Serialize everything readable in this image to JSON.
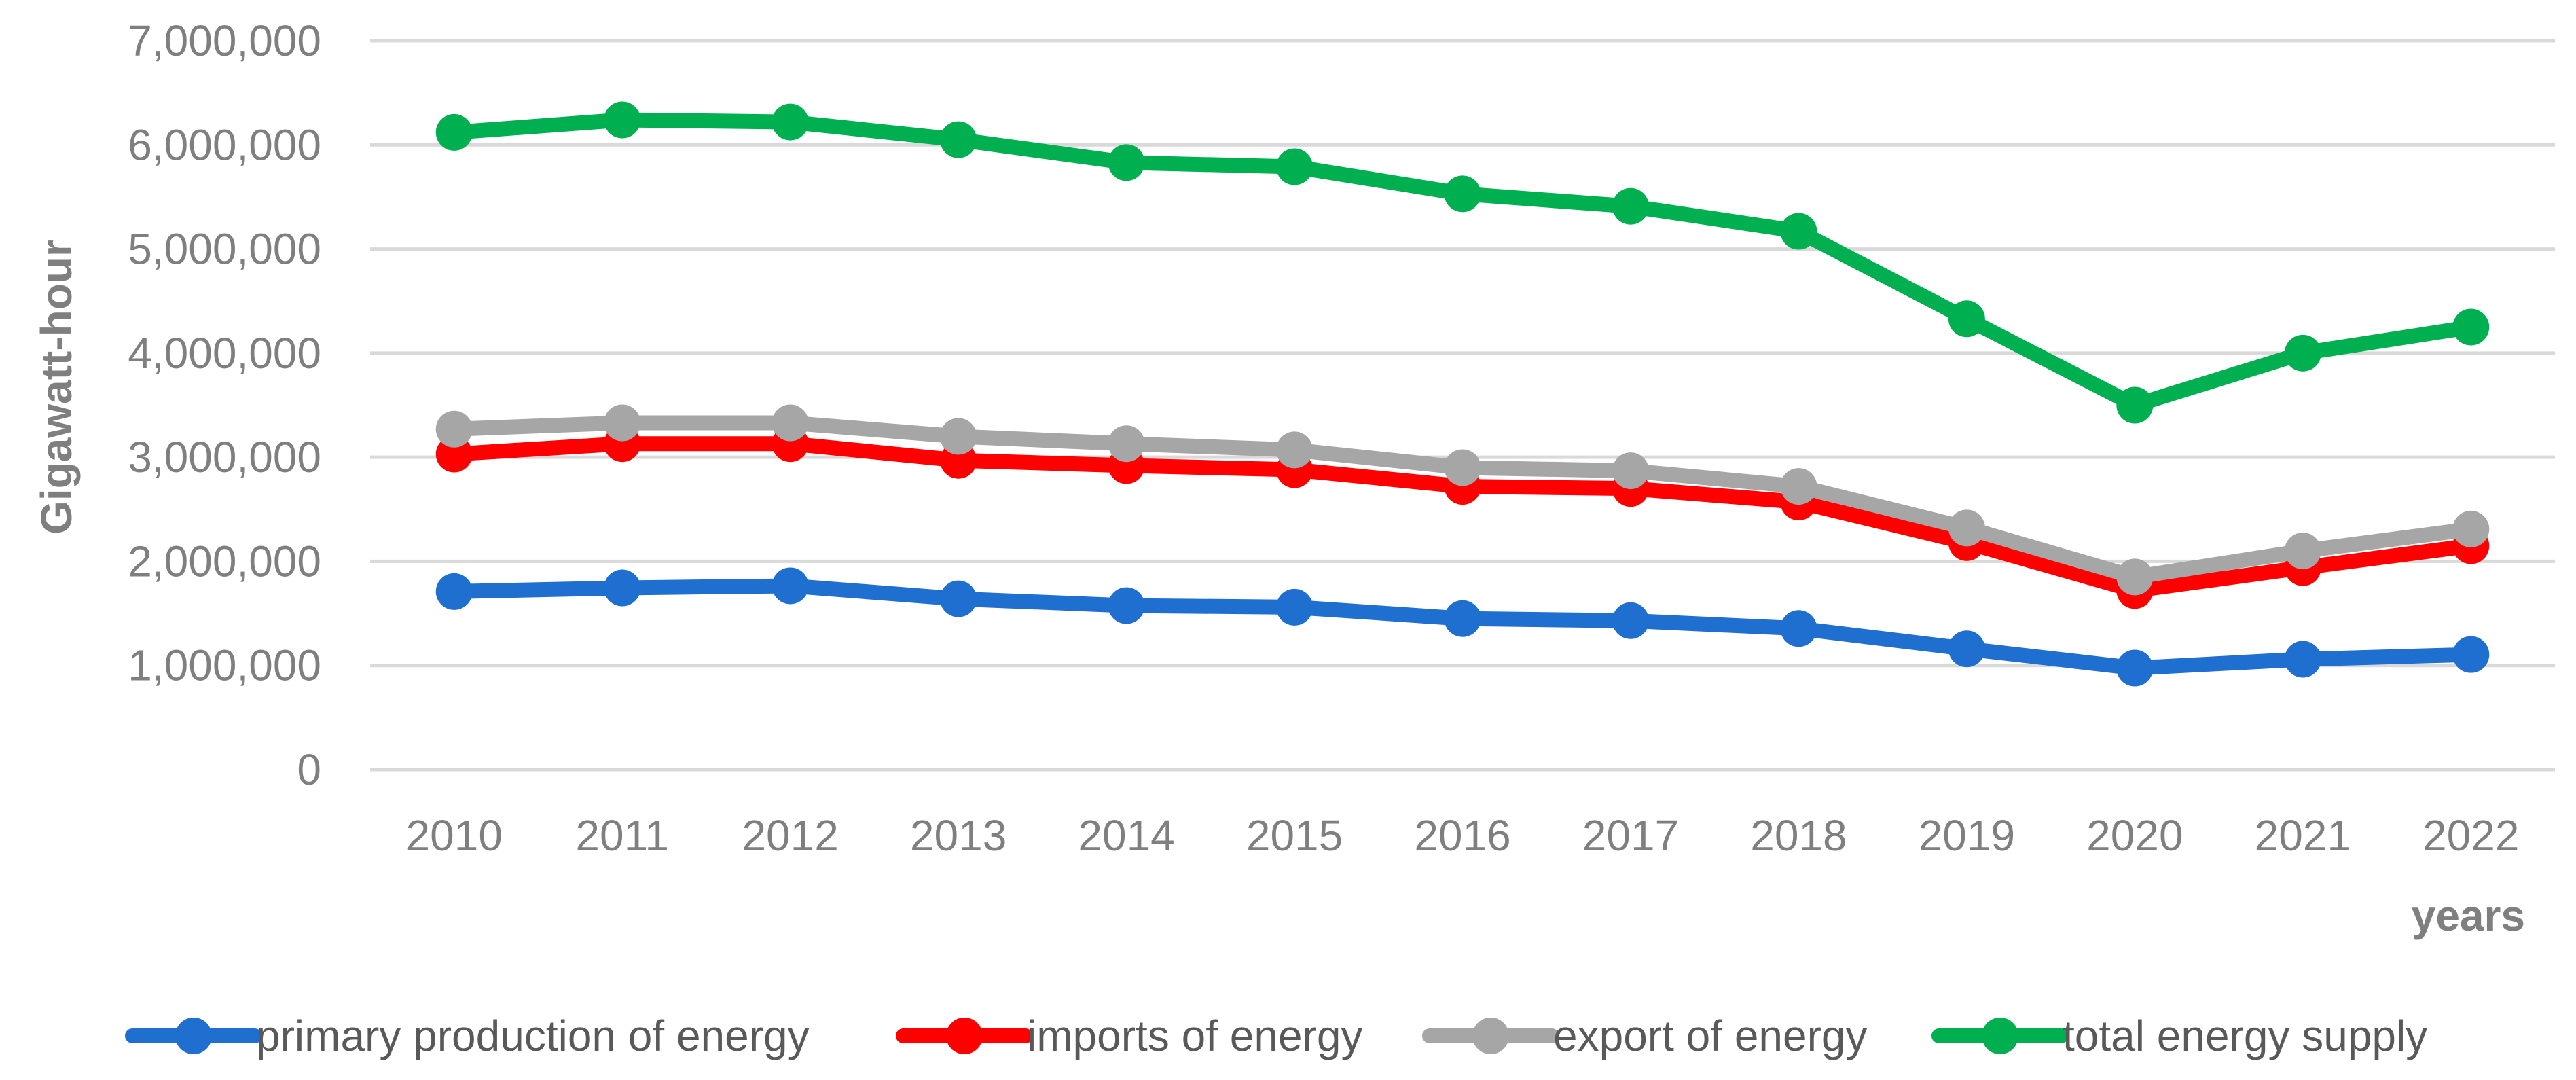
{
  "chart_data": {
    "type": "line",
    "title": "",
    "xlabel": "years",
    "ylabel": "Gigawatt-hour",
    "categories": [
      "2010",
      "2011",
      "2012",
      "2013",
      "2014",
      "2015",
      "2016",
      "2017",
      "2018",
      "2019",
      "2020",
      "2021",
      "2022"
    ],
    "ylim": [
      0,
      7000000
    ],
    "yticks": [
      0,
      1000000,
      2000000,
      3000000,
      4000000,
      5000000,
      6000000,
      7000000
    ],
    "ytick_labels": [
      "0",
      "1,000,000",
      "2,000,000",
      "3,000,000",
      "4,000,000",
      "5,000,000",
      "6,000,000",
      "7,000,000"
    ],
    "grid": true,
    "legend_position": "bottom",
    "series": [
      {
        "name": "primary production of energy",
        "color": "#1f6fd0",
        "values": [
          1710000,
          1745000,
          1765000,
          1640000,
          1575000,
          1560000,
          1450000,
          1430000,
          1355000,
          1160000,
          975000,
          1060000,
          1105000
        ]
      },
      {
        "name": "imports of energy",
        "color": "#ff0000",
        "values": [
          3030000,
          3130000,
          3130000,
          2970000,
          2920000,
          2880000,
          2720000,
          2700000,
          2570000,
          2180000,
          1720000,
          1940000,
          2150000
        ]
      },
      {
        "name": "export of energy",
        "color": "#a6a6a6",
        "values": [
          3270000,
          3330000,
          3330000,
          3200000,
          3130000,
          3070000,
          2900000,
          2870000,
          2720000,
          2320000,
          1850000,
          2100000,
          2310000
        ]
      },
      {
        "name": "total energy supply",
        "color": "#00b050",
        "values": [
          6120000,
          6240000,
          6220000,
          6050000,
          5830000,
          5790000,
          5530000,
          5410000,
          5170000,
          4330000,
          3500000,
          4000000,
          4250000
        ]
      }
    ]
  }
}
